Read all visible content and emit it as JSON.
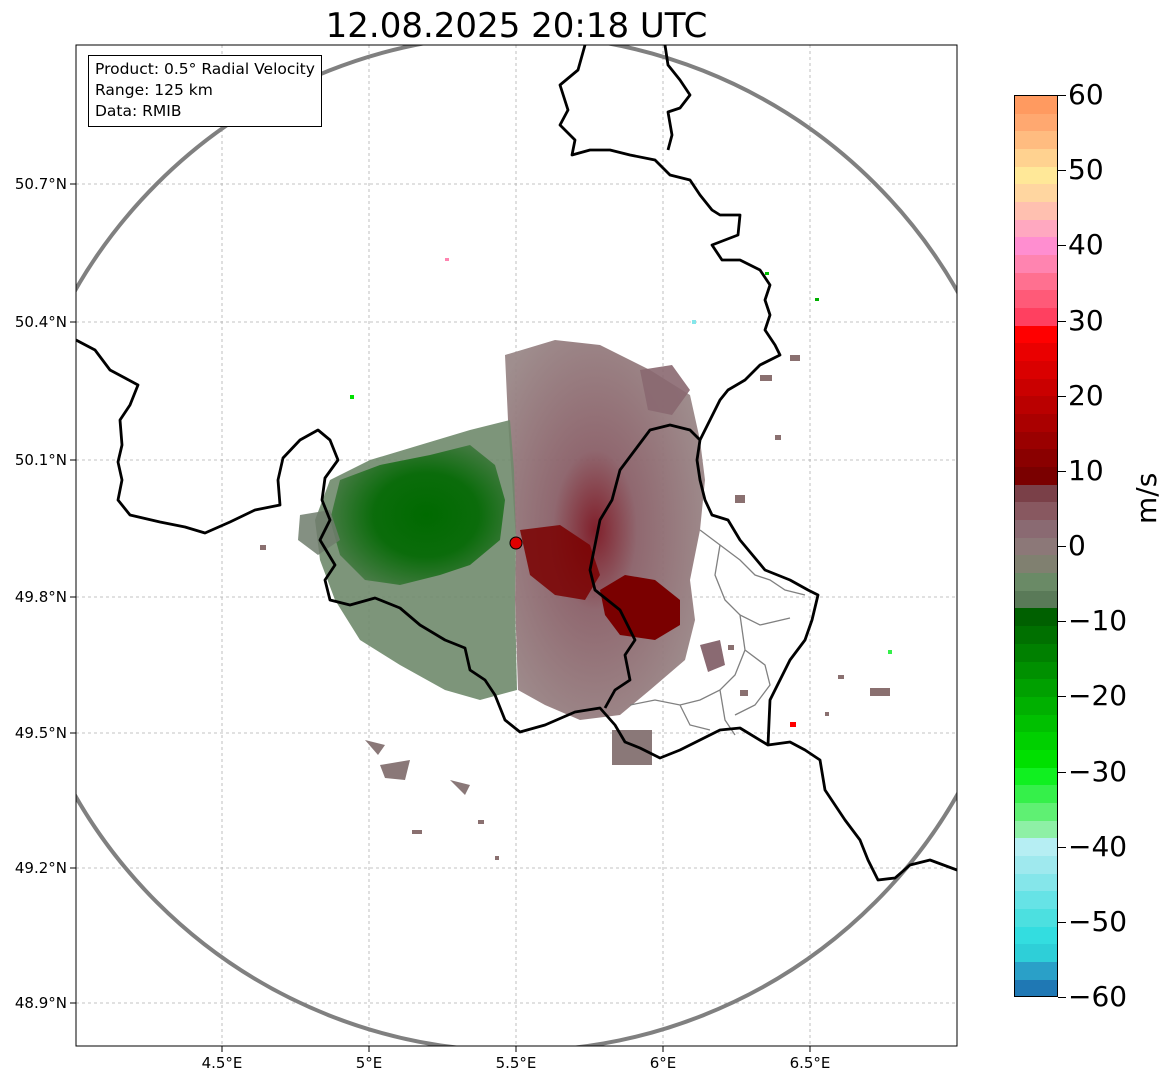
{
  "title": "12.08.2025 20:18 UTC",
  "info": {
    "product": "Product: 0.5° Radial Velocity",
    "range": "Range: 125 km",
    "data": "Data: RMIB"
  },
  "axes": {
    "lon_ticks": [
      "4.5°E",
      "5°E",
      "5.5°E",
      "6°E",
      "6.5°E"
    ],
    "lat_ticks": [
      "50.7°N",
      "50.4°N",
      "50.1°N",
      "49.8°N",
      "49.5°N",
      "49.2°N",
      "48.9°N"
    ]
  },
  "radar": {
    "lon": 5.5,
    "lat": 49.91,
    "range_km": 125,
    "marker_color": "#e00000"
  },
  "colorbar": {
    "unit": "m/s",
    "ticks": [
      "60",
      "50",
      "40",
      "30",
      "20",
      "10",
      "0",
      "−10",
      "−20",
      "−30",
      "−40",
      "−50",
      "−60"
    ],
    "min": -60,
    "max": 60,
    "colors": [
      "#1f78b4",
      "#2aa0c8",
      "#2ecfd8",
      "#33dde0",
      "#4ce0e0",
      "#66e3e6",
      "#85e6ea",
      "#9fe9ee",
      "#b6eef3",
      "#8ef0a6",
      "#5ff073",
      "#35f04a",
      "#10f020",
      "#00e000",
      "#00d000",
      "#00c000",
      "#00b000",
      "#00a000",
      "#009000",
      "#008000",
      "#007000",
      "#006000",
      "#5a7a58",
      "#6a8a66",
      "#808070",
      "#8c7878",
      "#8a6a72",
      "#885860",
      "#7a4048",
      "#7a0000",
      "#8a0000",
      "#9a0000",
      "#aa0000",
      "#ba0000",
      "#ca0000",
      "#da0000",
      "#ea0000",
      "#ff0000",
      "#ff4060",
      "#ff5a78",
      "#ff7090",
      "#ff84b0",
      "#ff8ed0",
      "#ffa8c0",
      "#ffc0b0",
      "#ffd6a0",
      "#ffe898",
      "#ffd290",
      "#ffbc80",
      "#ffa870",
      "#ff9a60"
    ],
    "colors_note": ""
  },
  "colors": {
    "border": "#000000",
    "range_ring": "#808080",
    "grid": "#b0b0b0",
    "approach": "#006400",
    "recede": "#7a0000"
  }
}
